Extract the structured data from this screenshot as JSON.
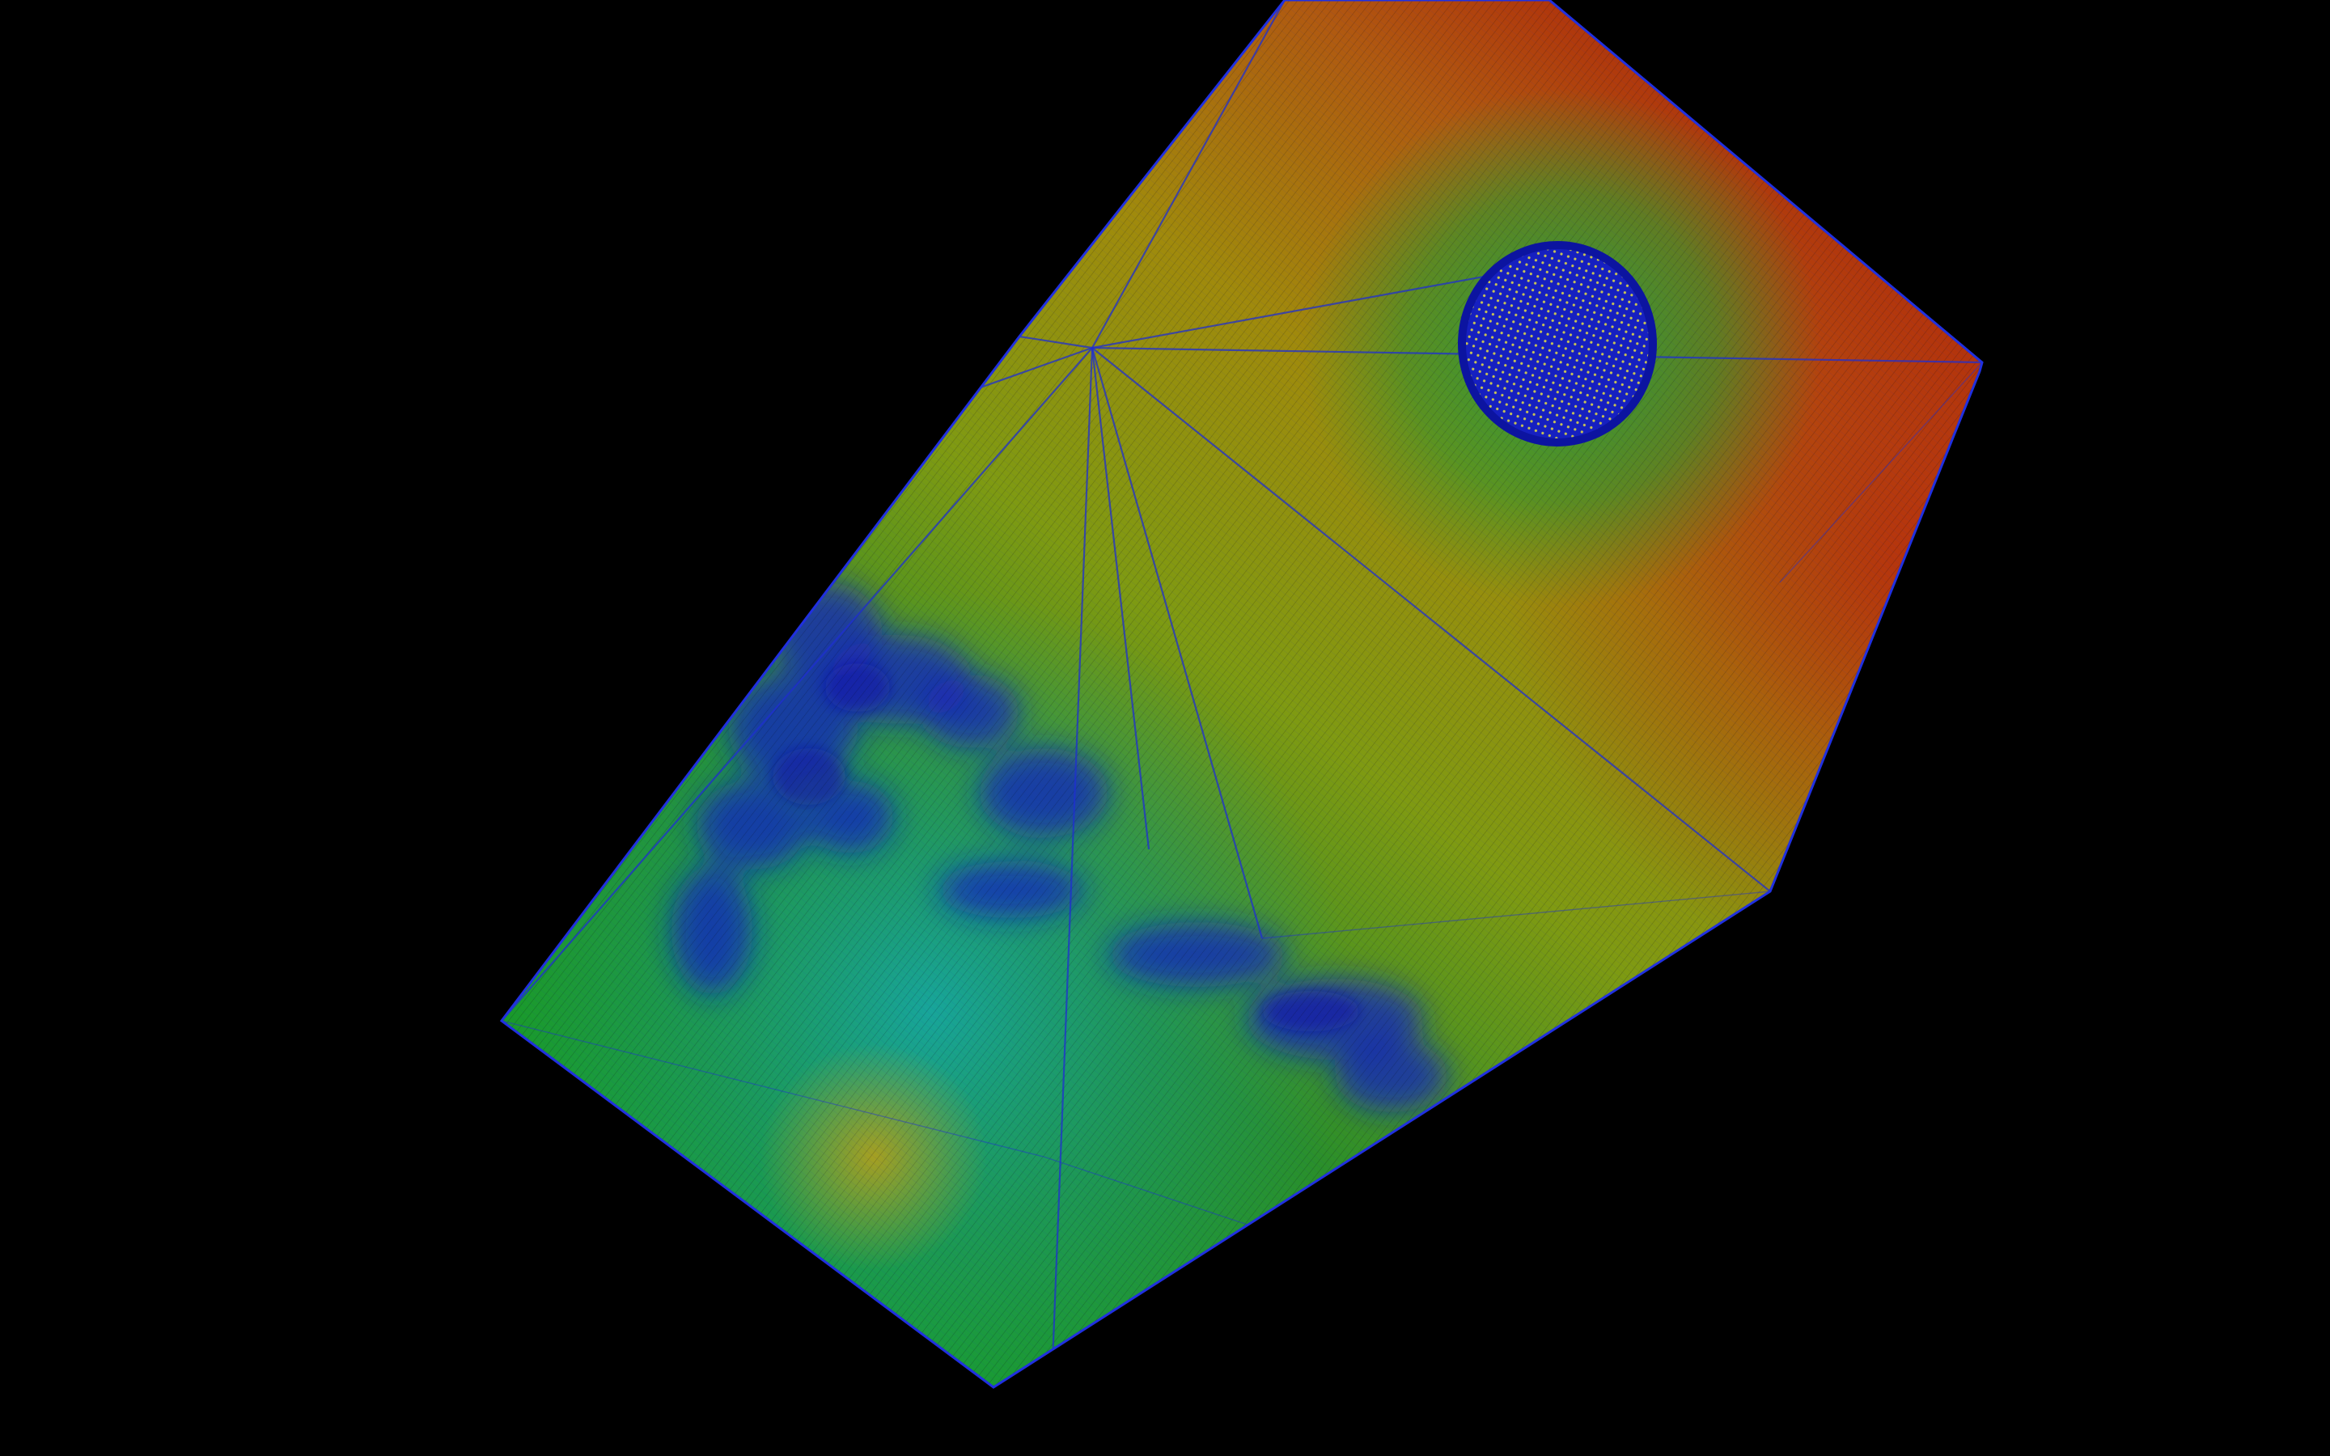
{
  "scene": {
    "background_color": "#000000",
    "render_style": "wireframe-mesh-heatmap",
    "colormap": [
      "#1010c8",
      "#1aa0a0",
      "#1f8f2a",
      "#8f9a10",
      "#b8860b",
      "#b03010"
    ],
    "wire_color": "#1f2fd0",
    "highlight_wire_color": "#e8e040"
  }
}
